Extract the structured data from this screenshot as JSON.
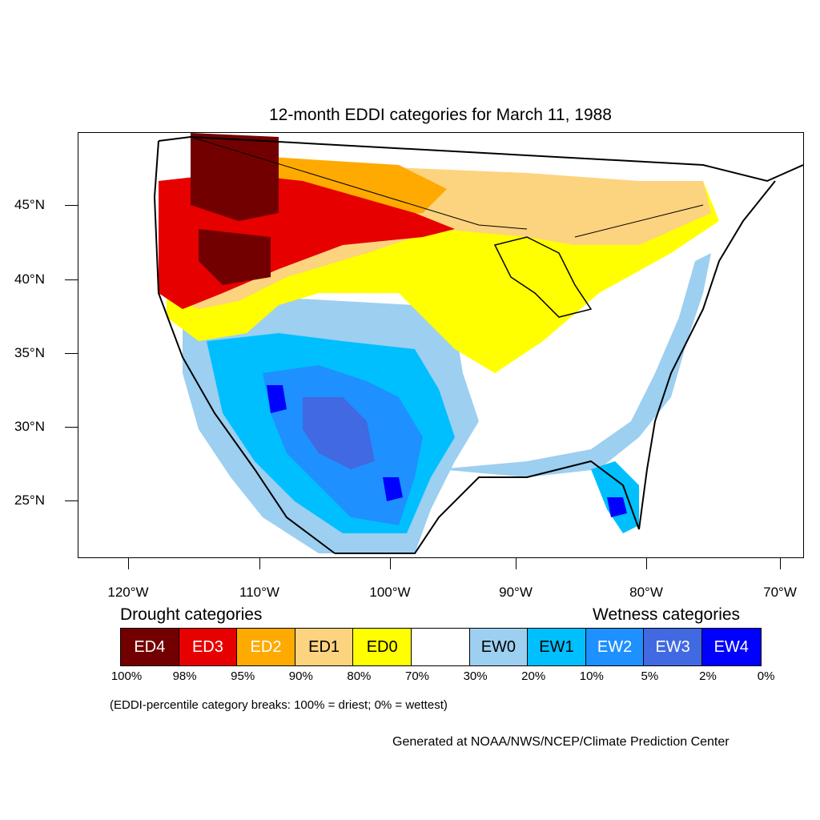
{
  "title": "12-month EDDI categories for March 11, 1988",
  "lat_labels": [
    "45°N",
    "40°N",
    "35°N",
    "30°N",
    "25°N"
  ],
  "lon_labels": [
    "120°W",
    "110°W",
    "100°W",
    "90°W",
    "80°W",
    "70°W"
  ],
  "legend": {
    "drought_header": "Drought categories",
    "wetness_header": "Wetness categories",
    "categories": [
      {
        "label": "ED4",
        "color": "#730000",
        "text_color": "#ffffff"
      },
      {
        "label": "ED3",
        "color": "#e60000",
        "text_color": "#ffffff"
      },
      {
        "label": "ED2",
        "color": "#ffaa00",
        "text_color": "#ffffff"
      },
      {
        "label": "ED1",
        "color": "#fcd37f",
        "text_color": "#000000"
      },
      {
        "label": "ED0",
        "color": "#ffff00",
        "text_color": "#000000"
      },
      {
        "label": "",
        "color": "#ffffff",
        "text_color": "#000000"
      },
      {
        "label": "EW0",
        "color": "#9dcff0",
        "text_color": "#000000"
      },
      {
        "label": "EW1",
        "color": "#00bfff",
        "text_color": "#000000"
      },
      {
        "label": "EW2",
        "color": "#1e90ff",
        "text_color": "#ffffff"
      },
      {
        "label": "EW3",
        "color": "#4169e1",
        "text_color": "#ffffff"
      },
      {
        "label": "EW4",
        "color": "#0000ff",
        "text_color": "#ffffff"
      }
    ],
    "breaks": [
      "100%",
      "98%",
      "95%",
      "90%",
      "80%",
      "70%",
      "30%",
      "20%",
      "10%",
      "5%",
      "2%",
      "0%"
    ]
  },
  "note": "(EDDI-percentile category breaks: 100% = driest; 0% = wettest)",
  "credit": "Generated at NOAA/NWS/NCEP/Climate Prediction Center"
}
